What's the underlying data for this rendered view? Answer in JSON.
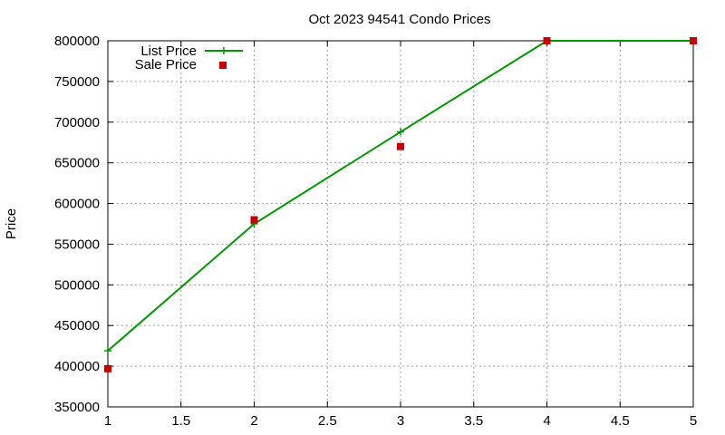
{
  "chart_data": {
    "type": "line",
    "title": "Oct 2023 94541 Condo Prices",
    "xlabel": "",
    "ylabel": "Price",
    "xlim": [
      1,
      5
    ],
    "ylim": [
      350000,
      800000
    ],
    "xticks": [
      1,
      1.5,
      2,
      2.5,
      3,
      3.5,
      4,
      4.5,
      5
    ],
    "yticks": [
      350000,
      400000,
      450000,
      500000,
      550000,
      600000,
      650000,
      700000,
      750000,
      800000
    ],
    "grid": true,
    "legend_position": "top-left",
    "series": [
      {
        "name": "List Price",
        "style": "line-plus",
        "color": "#009900",
        "x": [
          1,
          2,
          3,
          4,
          5
        ],
        "y": [
          419000,
          575000,
          688000,
          800000,
          800000
        ]
      },
      {
        "name": "Sale Price",
        "style": "square-points",
        "color": "#cc0000",
        "x": [
          1,
          2,
          3,
          4,
          5
        ],
        "y": [
          397000,
          580000,
          670000,
          800000,
          800000
        ]
      }
    ]
  }
}
